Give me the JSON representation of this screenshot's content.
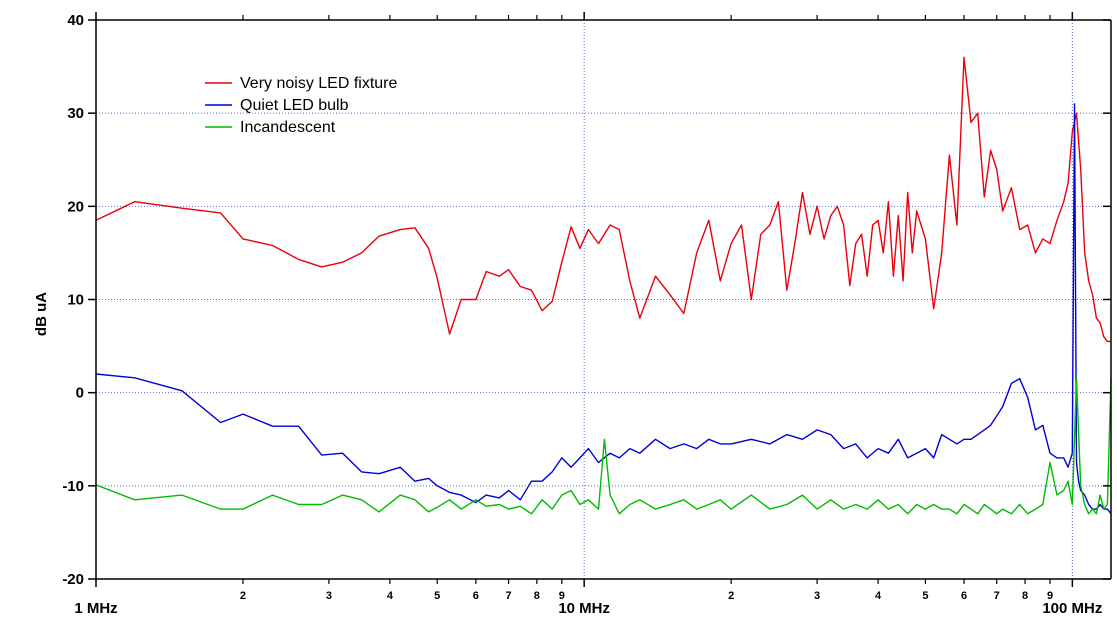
{
  "chart_data": {
    "type": "line",
    "title": "",
    "xlabel": "",
    "ylabel": "dB uA",
    "xscale": "log",
    "xlim": [
      1,
      120
    ],
    "ylim": [
      -20,
      40
    ],
    "grid": "dotted at major ticks",
    "legend_position": "top-left",
    "x_major_tick_labels": [
      {
        "x": 1,
        "label": "1 MHz"
      },
      {
        "x": 10,
        "label": "10 MHz"
      },
      {
        "x": 100,
        "label": "100 MHz"
      }
    ],
    "x_minor_tick_labels": [
      {
        "x": 2,
        "label": "2"
      },
      {
        "x": 3,
        "label": "3"
      },
      {
        "x": 4,
        "label": "4"
      },
      {
        "x": 5,
        "label": "5"
      },
      {
        "x": 6,
        "label": "6"
      },
      {
        "x": 7,
        "label": "7"
      },
      {
        "x": 8,
        "label": "8"
      },
      {
        "x": 9,
        "label": "9"
      },
      {
        "x": 20,
        "label": "2"
      },
      {
        "x": 30,
        "label": "3"
      },
      {
        "x": 40,
        "label": "4"
      },
      {
        "x": 50,
        "label": "5"
      },
      {
        "x": 60,
        "label": "6"
      },
      {
        "x": 70,
        "label": "7"
      },
      {
        "x": 80,
        "label": "8"
      },
      {
        "x": 90,
        "label": "9"
      }
    ],
    "y_tick_labels": [
      {
        "y": 40,
        "label": "40"
      },
      {
        "y": 30,
        "label": "30"
      },
      {
        "y": 20,
        "label": "20"
      },
      {
        "y": 10,
        "label": "10"
      },
      {
        "y": 0,
        "label": "0"
      },
      {
        "y": -10,
        "label": "-10"
      },
      {
        "y": -20,
        "label": "-20"
      }
    ],
    "series": [
      {
        "name": "Very noisy LED fixture",
        "color": "#e8000b",
        "x": [
          1,
          1.2,
          1.5,
          1.8,
          2.0,
          2.3,
          2.6,
          2.9,
          3.2,
          3.5,
          3.8,
          4.2,
          4.5,
          4.8,
          5.0,
          5.3,
          5.6,
          6.0,
          6.3,
          6.7,
          7.0,
          7.4,
          7.8,
          8.2,
          8.6,
          9.0,
          9.4,
          9.8,
          10.2,
          10.7,
          11.3,
          11.8,
          12.4,
          13.0,
          14.0,
          15.0,
          16.0,
          17.0,
          18.0,
          19.0,
          20.0,
          21.0,
          22.0,
          23.0,
          24.0,
          25.0,
          26.0,
          27.0,
          28.0,
          29.0,
          30.0,
          31.0,
          32.0,
          33.0,
          34.0,
          35.0,
          36.0,
          37.0,
          38.0,
          39.0,
          40.0,
          41.0,
          42.0,
          43.0,
          44.0,
          45.0,
          46.0,
          47.0,
          48.0,
          50.0,
          52.0,
          54.0,
          56.0,
          58.0,
          60.0,
          62.0,
          64.0,
          66.0,
          68.0,
          70.0,
          72.0,
          75.0,
          78.0,
          81.0,
          84.0,
          87.0,
          90.0,
          93.0,
          96.0,
          98.0,
          100.0,
          102.0,
          104.0,
          106.0,
          108.0,
          110.0,
          112.0,
          114.0,
          116.0,
          118.0,
          120.0
        ],
        "y": [
          18.5,
          20.5,
          19.8,
          19.3,
          16.5,
          15.8,
          14.3,
          13.5,
          14.0,
          15.0,
          16.8,
          17.5,
          17.7,
          15.5,
          12.3,
          6.3,
          10.0,
          10.0,
          13.0,
          12.5,
          13.2,
          11.4,
          11.0,
          8.8,
          9.8,
          14.0,
          17.8,
          15.5,
          17.5,
          16.0,
          18.0,
          17.5,
          12.0,
          8.0,
          12.5,
          10.5,
          8.5,
          15.0,
          18.5,
          12.0,
          16.0,
          18.0,
          10.0,
          17.0,
          18.0,
          20.5,
          11.0,
          16.0,
          21.5,
          17.0,
          20.0,
          16.5,
          19.0,
          20.0,
          18.0,
          11.5,
          16.0,
          17.0,
          12.5,
          18.0,
          18.5,
          15.0,
          20.5,
          12.5,
          19.0,
          12.0,
          21.5,
          15.0,
          19.5,
          16.5,
          9.0,
          15.0,
          25.5,
          18.0,
          36.0,
          29.0,
          30.0,
          21.0,
          26.0,
          24.0,
          19.5,
          22.0,
          17.5,
          18.0,
          15.0,
          16.5,
          16.0,
          18.5,
          20.5,
          22.5,
          28.0,
          30.0,
          24.0,
          15.0,
          12.0,
          10.5,
          8.0,
          7.5,
          6.0,
          5.5,
          5.5
        ]
      },
      {
        "name": "Quiet LED bulb",
        "color": "#0000d8",
        "x": [
          1,
          1.2,
          1.5,
          1.8,
          2.0,
          2.3,
          2.6,
          2.9,
          3.2,
          3.5,
          3.8,
          4.2,
          4.5,
          4.8,
          5.0,
          5.3,
          5.6,
          6.0,
          6.3,
          6.7,
          7.0,
          7.4,
          7.8,
          8.2,
          8.6,
          9.0,
          9.4,
          9.8,
          10.2,
          10.7,
          11.3,
          11.8,
          12.4,
          13.0,
          14.0,
          15.0,
          16.0,
          17.0,
          18.0,
          19.0,
          20.0,
          22.0,
          24.0,
          26.0,
          28.0,
          30.0,
          32.0,
          34.0,
          36.0,
          38.0,
          40.0,
          42.0,
          44.0,
          46.0,
          48.0,
          50.0,
          52.0,
          54.0,
          56.0,
          58.0,
          60.0,
          62.0,
          64.0,
          66.0,
          68.0,
          70.0,
          72.0,
          75.0,
          78.0,
          81.0,
          84.0,
          87.0,
          90.0,
          93.0,
          96.0,
          98.0,
          100.0,
          101.0,
          102.0,
          103.0,
          104.0,
          106.0,
          108.0,
          110.0,
          112.0,
          114.0,
          116.0,
          118.0,
          120.0
        ],
        "y": [
          2.0,
          1.6,
          0.2,
          -3.2,
          -2.3,
          -3.6,
          -3.6,
          -6.7,
          -6.5,
          -8.5,
          -8.7,
          -8.0,
          -9.5,
          -9.2,
          -10.0,
          -10.7,
          -11.0,
          -11.8,
          -11.0,
          -11.3,
          -10.5,
          -11.5,
          -9.5,
          -9.5,
          -8.5,
          -7.0,
          -8.0,
          -7.0,
          -6.0,
          -7.5,
          -6.5,
          -7.0,
          -6.0,
          -6.5,
          -5.0,
          -6.0,
          -5.5,
          -6.0,
          -5.0,
          -5.5,
          -5.5,
          -5.0,
          -5.5,
          -4.5,
          -5.0,
          -4.0,
          -4.5,
          -6.0,
          -5.5,
          -7.0,
          -6.0,
          -6.5,
          -5.0,
          -7.0,
          -6.5,
          -6.0,
          -7.0,
          -4.5,
          -5.0,
          -5.5,
          -5.0,
          -5.0,
          -4.5,
          -4.0,
          -3.5,
          -2.5,
          -1.5,
          1.0,
          1.5,
          -0.5,
          -4.0,
          -3.5,
          -6.5,
          -7.0,
          -7.0,
          -8.0,
          -6.5,
          31.0,
          -7.5,
          -9.5,
          -10.5,
          -11.0,
          -12.0,
          -12.5,
          -12.5,
          -12.0,
          -12.5,
          -12.5,
          -13.0
        ]
      },
      {
        "name": "Incandescent",
        "color": "#00bb00",
        "x": [
          1,
          1.2,
          1.5,
          1.8,
          2.0,
          2.3,
          2.6,
          2.9,
          3.2,
          3.5,
          3.8,
          4.2,
          4.5,
          4.8,
          5.0,
          5.3,
          5.6,
          6.0,
          6.3,
          6.7,
          7.0,
          7.4,
          7.8,
          8.2,
          8.6,
          9.0,
          9.4,
          9.8,
          10.2,
          10.7,
          11.0,
          11.3,
          11.8,
          12.4,
          13.0,
          14.0,
          15.0,
          16.0,
          17.0,
          18.0,
          19.0,
          20.0,
          22.0,
          24.0,
          26.0,
          28.0,
          30.0,
          32.0,
          34.0,
          36.0,
          38.0,
          40.0,
          42.0,
          44.0,
          46.0,
          48.0,
          50.0,
          52.0,
          54.0,
          56.0,
          58.0,
          60.0,
          62.0,
          64.0,
          66.0,
          68.0,
          70.0,
          72.0,
          75.0,
          78.0,
          81.0,
          84.0,
          87.0,
          90.0,
          93.0,
          96.0,
          98.0,
          100.0,
          102.0,
          104.0,
          106.0,
          108.0,
          110.0,
          112.0,
          114.0,
          116.0,
          118.0,
          120.0
        ],
        "y": [
          -9.9,
          -11.5,
          -11.0,
          -12.5,
          -12.5,
          -11.0,
          -12.0,
          -12.0,
          -11.0,
          -11.5,
          -12.8,
          -11.0,
          -11.5,
          -12.8,
          -12.3,
          -11.5,
          -12.5,
          -11.5,
          -12.2,
          -12.0,
          -12.5,
          -12.2,
          -13.0,
          -11.5,
          -12.5,
          -11.0,
          -10.5,
          -12.0,
          -11.5,
          -12.5,
          -5.0,
          -11.0,
          -13.0,
          -12.0,
          -11.5,
          -12.5,
          -12.0,
          -11.5,
          -12.5,
          -12.0,
          -11.5,
          -12.5,
          -11.0,
          -12.5,
          -12.0,
          -11.0,
          -12.5,
          -11.5,
          -12.5,
          -12.0,
          -12.5,
          -11.5,
          -12.5,
          -12.0,
          -13.0,
          -12.0,
          -12.5,
          -12.0,
          -12.5,
          -12.5,
          -13.0,
          -12.0,
          -12.5,
          -13.0,
          -12.0,
          -12.5,
          -13.0,
          -12.5,
          -13.0,
          -12.0,
          -13.0,
          -12.5,
          -12.0,
          -7.5,
          -11.0,
          -10.5,
          -9.5,
          -12.0,
          1.5,
          -10.0,
          -12.0,
          -13.0,
          -12.5,
          -13.0,
          -11.0,
          -12.5,
          -12.0,
          1.5
        ]
      }
    ]
  }
}
